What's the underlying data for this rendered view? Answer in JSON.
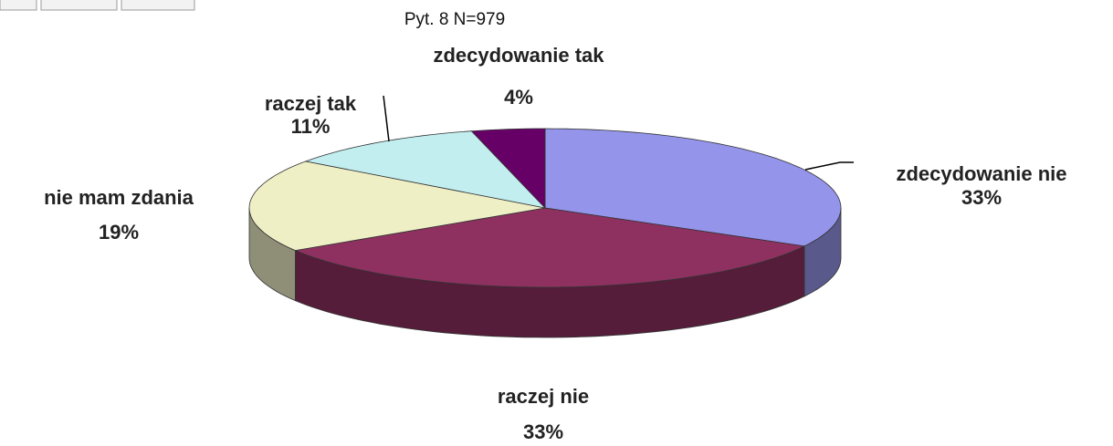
{
  "chart_data": {
    "type": "pie",
    "title": "Pyt. 8 N=979",
    "categories": [
      "zdecydowanie nie",
      "raczej nie",
      "nie mam zdania",
      "raczej tak",
      "zdecydowanie tak"
    ],
    "values": [
      33,
      33,
      19,
      11,
      4
    ],
    "value_labels": [
      "33%",
      "33%",
      "19%",
      "11%",
      "4%"
    ],
    "colors": [
      "#9494ea",
      "#8e3160",
      "#efefc6",
      "#c2eef0",
      "#660066"
    ],
    "three_d": true
  }
}
